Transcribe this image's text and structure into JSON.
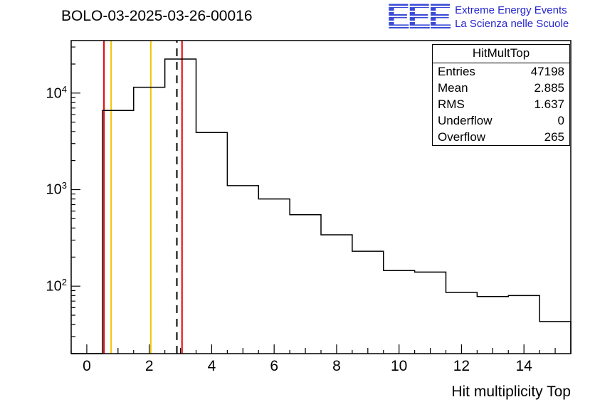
{
  "header": {
    "title": "BOLO-03-2025-03-26-00016",
    "logo": {
      "acronym": "EEE",
      "line1": "Extreme Energy Events",
      "line2": "La Scienza nelle Scuole",
      "color": "#2525cf"
    }
  },
  "stats_box": {
    "title": "HitMultTop",
    "rows": [
      {
        "label": "Entries",
        "value": "47198"
      },
      {
        "label": "Mean",
        "value": "2.885"
      },
      {
        "label": "RMS",
        "value": "1.637"
      },
      {
        "label": "Underflow",
        "value": "0"
      },
      {
        "label": "Overflow",
        "value": "265"
      }
    ]
  },
  "chart_data": {
    "type": "bar",
    "title": "BOLO-03-2025-03-26-00016",
    "xlabel": "Hit multiplicity Top",
    "ylabel": "",
    "histogram_name": "HitMultTop",
    "bin_width": 1,
    "bin_centers": [
      1,
      2,
      3,
      4,
      5,
      6,
      7,
      8,
      9,
      10,
      11,
      12,
      13,
      14,
      15
    ],
    "values": [
      6600,
      11500,
      22500,
      3900,
      1100,
      800,
      550,
      340,
      230,
      145,
      140,
      86,
      78,
      80,
      43
    ],
    "first_bin_edge": 0.5,
    "xlim": [
      -0.5,
      15.5
    ],
    "ylim": [
      20,
      35000
    ],
    "yscale": "log",
    "x_ticks": [
      0,
      2,
      4,
      6,
      8,
      10,
      12,
      14
    ],
    "y_tick_exponents": [
      2,
      3,
      4
    ],
    "line_color": "#000000",
    "reference_lines": [
      {
        "x": 0.55,
        "color": "#e60000",
        "style": "solid"
      },
      {
        "x": 0.78,
        "color": "#f5c400",
        "style": "solid"
      },
      {
        "x": 2.05,
        "color": "#f5c400",
        "style": "solid"
      },
      {
        "x": 2.885,
        "color": "#000000",
        "style": "dashed"
      },
      {
        "x": 3.05,
        "color": "#e60000",
        "style": "solid"
      }
    ],
    "grid": false,
    "legend": false
  }
}
